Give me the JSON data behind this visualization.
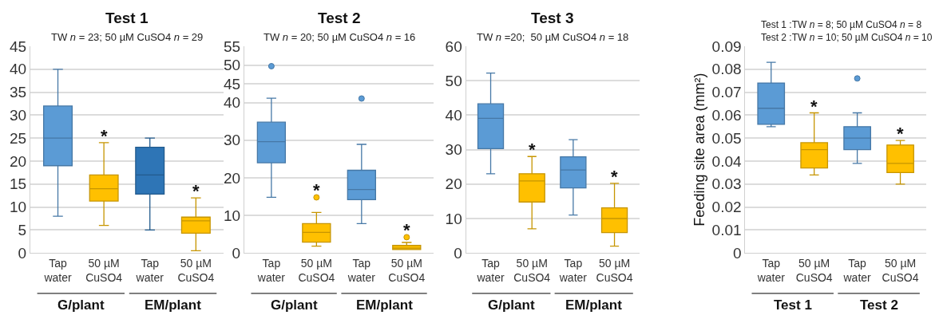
{
  "chart_data": [
    {
      "type": "box",
      "title": "Test 1",
      "subtitle": "TW n = 23; 50 µM CuSO4 n = 29",
      "categories": [
        "Tap water",
        "50 µM CuSO4",
        "Tap water",
        "50 µM CuSO4"
      ],
      "colors": [
        "#5b9bd5",
        "#ffc000",
        "#2e75b6",
        "#ffc000"
      ],
      "boxes": [
        {
          "low": 8,
          "q1": 19,
          "median": 25,
          "q3": 32,
          "high": 40
        },
        {
          "low": 6,
          "q1": 11.3,
          "median": 14,
          "q3": 17,
          "high": 24
        },
        {
          "low": 5,
          "q1": 12.8,
          "median": 17,
          "q3": 23,
          "high": 25
        },
        {
          "low": 0.5,
          "q1": 4.3,
          "median": 7,
          "q3": 7.8,
          "high": 12
        }
      ],
      "ylim": [
        0,
        45
      ],
      "yticks": [
        0,
        5,
        10,
        15,
        20,
        25,
        30,
        35,
        40,
        45
      ],
      "grid": "y",
      "annotations": [
        "G/plant",
        "EM/plant",
        "*",
        "*"
      ]
    },
    {
      "type": "box",
      "title": "Test 2",
      "subtitle": "TW n = 20; 50 µM CuSO4 n = 16",
      "categories": [
        "Tap water",
        "50 µM CuSO4",
        "Tap water",
        "50 µM CuSO4"
      ],
      "colors": [
        "#5b9bd5",
        "#ffc000",
        "#5b9bd5",
        "#ffc000"
      ],
      "boxes": [
        {
          "low": 14.8,
          "q1": 24,
          "median": 29.6,
          "q3": 34.8,
          "high": 41.2,
          "outliers": [
            49.7
          ]
        },
        {
          "low": 1.8,
          "q1": 2.9,
          "median": 5.5,
          "q3": 7.8,
          "high": 10.8,
          "outliers": [
            14.8
          ]
        },
        {
          "low": 7.8,
          "q1": 14.2,
          "median": 16.9,
          "q3": 22,
          "high": 28.9,
          "outliers": [
            41.1
          ]
        },
        {
          "low": 0.9,
          "q1": 0.9,
          "median": 1.3,
          "q3": 2,
          "high": 2.8,
          "outliers": [
            4.2
          ]
        }
      ],
      "ylim": [
        0,
        55
      ],
      "yticks": [
        0,
        10,
        20,
        30,
        40,
        45,
        50,
        55
      ],
      "grid": "y",
      "annotations": [
        "G/plant",
        "EM/plant",
        "*",
        "*"
      ]
    },
    {
      "type": "box",
      "title": "Test 3",
      "subtitle": "TW n =20;  50 µM CuSO4 n = 18",
      "categories": [
        "Tap water",
        "50 µM CuSO4",
        "Tap water",
        "50 µM CuSO4"
      ],
      "colors": [
        "#5b9bd5",
        "#ffc000",
        "#5b9bd5",
        "#ffc000"
      ],
      "boxes": [
        {
          "low": 23,
          "q1": 30.3,
          "median": 39.1,
          "q3": 43.3,
          "high": 52.2
        },
        {
          "low": 7,
          "q1": 14.8,
          "median": 20.9,
          "q3": 23,
          "high": 28
        },
        {
          "low": 11,
          "q1": 18.9,
          "median": 24.1,
          "q3": 27.9,
          "high": 32.9
        },
        {
          "low": 2,
          "q1": 5.9,
          "median": 10,
          "q3": 13.1,
          "high": 20.2
        }
      ],
      "ylim": [
        0,
        60
      ],
      "yticks": [
        0,
        10,
        20,
        30,
        40,
        50,
        60
      ],
      "grid": "y",
      "annotations": [
        "G/plant",
        "EM/plant",
        "*",
        "*"
      ]
    },
    {
      "type": "box",
      "subtitle": "Test 1 :TW n = 8; 50 µM CuSO4 n = 8\nTest 2 :TW n = 10; 50 µM CuSO4 n = 10",
      "ylabel": "Feeding site area (mm²)",
      "categories": [
        "Tap water",
        "50 µM CuSO4",
        "Tap water",
        "50 µM CuSO4"
      ],
      "colors": [
        "#5b9bd5",
        "#ffc000",
        "#5b9bd5",
        "#ffc000"
      ],
      "boxes": [
        {
          "low": 0.055,
          "q1": 0.056,
          "median": 0.063,
          "q3": 0.074,
          "high": 0.083
        },
        {
          "low": 0.034,
          "q1": 0.037,
          "median": 0.045,
          "q3": 0.048,
          "high": 0.061
        },
        {
          "low": 0.039,
          "q1": 0.045,
          "median": 0.05,
          "q3": 0.055,
          "high": 0.061,
          "outliers": [
            0.076
          ]
        },
        {
          "low": 0.03,
          "q1": 0.035,
          "median": 0.039,
          "q3": 0.047,
          "high": 0.049
        }
      ],
      "ylim": [
        0,
        0.09
      ],
      "yticks": [
        0,
        0.01,
        0.02,
        0.03,
        0.04,
        0.05,
        0.06,
        0.07,
        0.08,
        0.09
      ],
      "grid": "y",
      "annotations": [
        "Test 1",
        "Test 2",
        "*",
        "*"
      ]
    }
  ]
}
